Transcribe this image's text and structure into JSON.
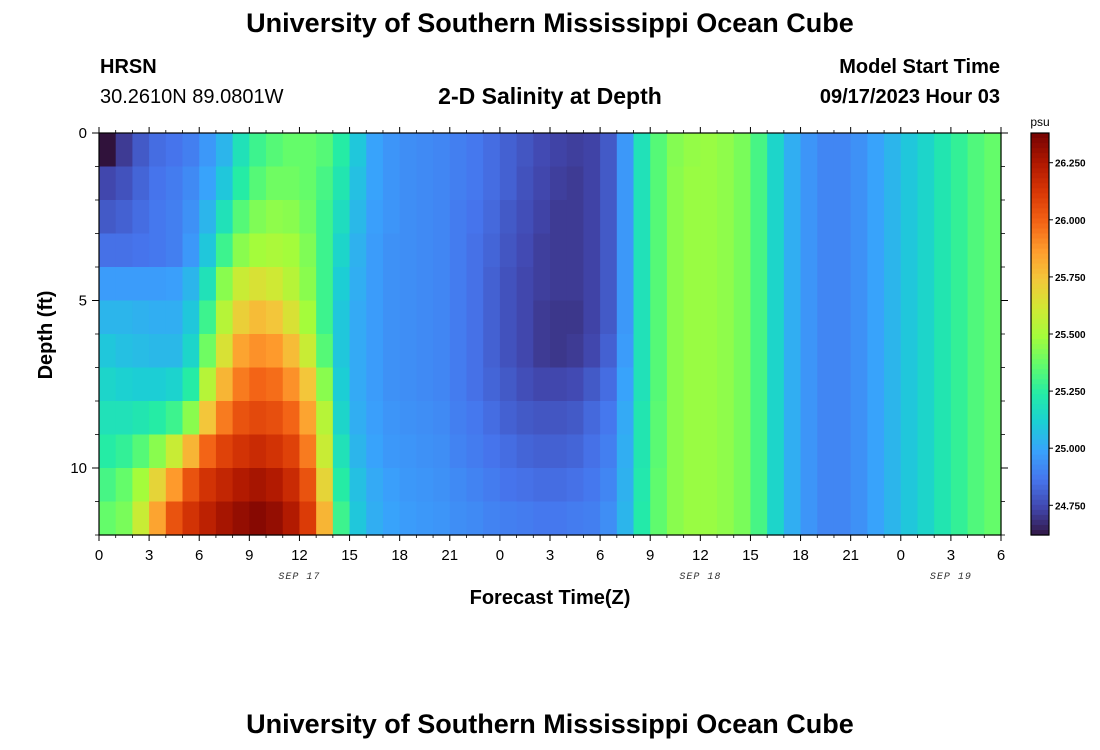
{
  "header": {
    "title": "University of Southern Mississippi Ocean Cube",
    "station": "HRSN",
    "coordinates": "30.2610N  89.0801W",
    "subtitle": "2-D Salinity at Depth",
    "start_label": "Model Start Time",
    "start_value": "09/17/2023 Hour 03"
  },
  "footer": {
    "title": "University of Southern Mississippi Ocean Cube"
  },
  "chart_data": {
    "type": "heatmap",
    "title": "2-D Salinity at Depth",
    "xlabel": "Forecast Time(Z)",
    "ylabel": "Depth (ft)",
    "x_range_hours": [
      0,
      54
    ],
    "x_ticks": [
      {
        "hour": 0,
        "label": "0"
      },
      {
        "hour": 3,
        "label": "3"
      },
      {
        "hour": 6,
        "label": "6"
      },
      {
        "hour": 9,
        "label": "9"
      },
      {
        "hour": 12,
        "label": "12"
      },
      {
        "hour": 15,
        "label": "15"
      },
      {
        "hour": 18,
        "label": "18"
      },
      {
        "hour": 21,
        "label": "21"
      },
      {
        "hour": 24,
        "label": "0"
      },
      {
        "hour": 27,
        "label": "3"
      },
      {
        "hour": 30,
        "label": "6"
      },
      {
        "hour": 33,
        "label": "9"
      },
      {
        "hour": 36,
        "label": "12"
      },
      {
        "hour": 39,
        "label": "15"
      },
      {
        "hour": 42,
        "label": "18"
      },
      {
        "hour": 45,
        "label": "21"
      },
      {
        "hour": 48,
        "label": "0"
      },
      {
        "hour": 51,
        "label": "3"
      },
      {
        "hour": 54,
        "label": "6"
      }
    ],
    "date_labels": [
      {
        "hour": 12,
        "label": "SEP 17"
      },
      {
        "hour": 36,
        "label": "SEP 18"
      },
      {
        "hour": 51,
        "label": "SEP 19"
      }
    ],
    "y_range_ft": [
      0,
      12
    ],
    "y_ticks": [
      {
        "depth": 0,
        "label": "0"
      },
      {
        "depth": 5,
        "label": "5"
      },
      {
        "depth": 10,
        "label": "10"
      }
    ],
    "colorbar": {
      "units": "psu",
      "range": [
        24.62,
        26.38
      ],
      "ticks": [
        {
          "value": 24.75,
          "label": "24.750"
        },
        {
          "value": 25.0,
          "label": "25.000"
        },
        {
          "value": 25.25,
          "label": "25.250"
        },
        {
          "value": 25.5,
          "label": "25.500"
        },
        {
          "value": 25.75,
          "label": "25.750"
        },
        {
          "value": 26.0,
          "label": "26.000"
        },
        {
          "value": 26.25,
          "label": "26.250"
        }
      ]
    },
    "grid": {
      "time_columns": 54,
      "depth_levels": 12
    },
    "depth_levels_ft": [
      0.5,
      1.5,
      2.5,
      3.5,
      4.5,
      5.5,
      6.5,
      7.5,
      8.5,
      9.5,
      10.5,
      11.5
    ],
    "salinity_psu": [
      [
        24.62,
        24.72,
        24.8,
        24.85,
        24.87,
        24.9,
        24.97,
        25.05,
        25.2,
        25.3,
        25.35,
        25.38,
        25.38,
        25.35,
        25.25,
        25.1,
        25.0,
        24.96,
        24.94,
        24.93,
        24.92,
        24.9,
        24.88,
        24.85,
        24.82,
        24.79,
        24.76,
        24.74,
        24.73,
        24.74,
        24.8,
        24.97,
        25.2,
        25.35,
        25.44,
        25.47,
        25.48,
        25.46,
        25.42,
        25.32,
        25.15,
        25.03,
        24.96,
        24.92,
        24.92,
        24.95,
        25.0,
        25.05,
        25.1,
        25.15,
        25.22,
        25.28,
        25.34,
        25.38
      ],
      [
        24.75,
        24.78,
        24.83,
        24.87,
        24.89,
        24.93,
        25.0,
        25.1,
        25.25,
        25.35,
        25.4,
        25.4,
        25.38,
        25.32,
        25.22,
        25.08,
        25.0,
        24.96,
        24.94,
        24.93,
        24.92,
        24.9,
        24.88,
        24.85,
        24.82,
        24.78,
        24.75,
        24.73,
        24.72,
        24.74,
        24.8,
        24.97,
        25.2,
        25.35,
        25.45,
        25.48,
        25.48,
        25.46,
        25.42,
        25.32,
        25.15,
        25.03,
        24.96,
        24.92,
        24.92,
        24.95,
        25.0,
        25.05,
        25.1,
        25.15,
        25.22,
        25.28,
        25.34,
        25.38
      ],
      [
        24.8,
        24.82,
        24.85,
        24.88,
        24.9,
        24.95,
        25.05,
        25.2,
        25.35,
        25.43,
        25.46,
        25.45,
        25.4,
        25.3,
        25.18,
        25.06,
        24.99,
        24.96,
        24.94,
        24.93,
        24.92,
        24.89,
        24.87,
        24.84,
        24.8,
        24.77,
        24.74,
        24.72,
        24.72,
        24.74,
        24.8,
        24.97,
        25.2,
        25.35,
        25.45,
        25.48,
        25.48,
        25.46,
        25.42,
        25.32,
        25.15,
        25.03,
        24.96,
        24.92,
        24.92,
        24.95,
        25.0,
        25.05,
        25.1,
        25.15,
        25.22,
        25.28,
        25.34,
        25.38
      ],
      [
        24.86,
        24.86,
        24.87,
        24.88,
        24.9,
        24.97,
        25.1,
        25.3,
        25.45,
        25.5,
        25.52,
        25.5,
        25.43,
        25.3,
        25.15,
        25.04,
        24.98,
        24.95,
        24.94,
        24.93,
        24.92,
        24.89,
        24.86,
        24.83,
        24.79,
        24.76,
        24.73,
        24.72,
        24.72,
        24.74,
        24.8,
        24.97,
        25.2,
        25.35,
        25.45,
        25.48,
        25.48,
        25.46,
        25.42,
        25.32,
        25.15,
        25.03,
        24.96,
        24.92,
        24.92,
        24.95,
        25.0,
        25.05,
        25.1,
        25.15,
        25.22,
        25.28,
        25.34,
        25.38
      ],
      [
        24.98,
        24.98,
        24.98,
        24.98,
        24.99,
        25.05,
        25.2,
        25.45,
        25.6,
        25.65,
        25.62,
        25.55,
        25.45,
        25.3,
        25.12,
        25.03,
        24.98,
        24.95,
        24.94,
        24.93,
        24.92,
        24.89,
        24.86,
        24.82,
        24.78,
        24.75,
        24.73,
        24.72,
        24.72,
        24.74,
        24.8,
        24.97,
        25.2,
        25.35,
        25.45,
        25.48,
        25.48,
        25.46,
        25.42,
        25.32,
        25.15,
        25.03,
        24.96,
        24.92,
        24.92,
        24.95,
        25.0,
        25.05,
        25.1,
        25.15,
        25.22,
        25.28,
        25.34,
        25.38
      ],
      [
        25.05,
        25.05,
        25.04,
        25.03,
        25.03,
        25.1,
        25.3,
        25.55,
        25.72,
        25.78,
        25.75,
        25.65,
        25.5,
        25.3,
        25.1,
        25.02,
        24.98,
        24.95,
        24.94,
        24.93,
        24.92,
        24.89,
        24.86,
        24.82,
        24.78,
        24.75,
        24.72,
        24.71,
        24.71,
        24.74,
        24.8,
        24.97,
        25.2,
        25.35,
        25.45,
        25.48,
        25.48,
        25.46,
        25.42,
        25.32,
        25.15,
        25.03,
        24.96,
        24.92,
        24.92,
        24.95,
        25.0,
        25.05,
        25.1,
        25.15,
        25.22,
        25.28,
        25.34,
        25.38
      ],
      [
        25.1,
        25.08,
        25.07,
        25.06,
        25.06,
        25.15,
        25.4,
        25.65,
        25.85,
        25.9,
        25.88,
        25.78,
        25.6,
        25.35,
        25.1,
        25.02,
        24.98,
        24.95,
        24.94,
        24.93,
        24.92,
        24.89,
        24.86,
        24.82,
        24.78,
        24.75,
        24.72,
        24.71,
        24.72,
        24.75,
        24.82,
        24.98,
        25.2,
        25.35,
        25.45,
        25.48,
        25.48,
        25.46,
        25.42,
        25.32,
        25.15,
        25.03,
        24.96,
        24.92,
        24.92,
        24.95,
        25.0,
        25.05,
        25.1,
        25.15,
        25.22,
        25.28,
        25.34,
        25.38
      ],
      [
        25.15,
        25.13,
        25.12,
        25.12,
        25.14,
        25.25,
        25.55,
        25.8,
        25.95,
        26.0,
        25.98,
        25.9,
        25.75,
        25.45,
        25.12,
        25.02,
        24.98,
        24.95,
        24.94,
        24.93,
        24.92,
        24.89,
        24.86,
        24.83,
        24.8,
        24.77,
        24.75,
        24.75,
        24.76,
        24.8,
        24.85,
        25.0,
        25.2,
        25.35,
        25.45,
        25.48,
        25.48,
        25.46,
        25.42,
        25.32,
        25.15,
        25.03,
        24.96,
        24.92,
        24.92,
        24.95,
        25.0,
        25.05,
        25.1,
        25.15,
        25.22,
        25.28,
        25.34,
        25.38
      ],
      [
        25.2,
        25.2,
        25.22,
        25.25,
        25.3,
        25.45,
        25.75,
        25.95,
        26.05,
        26.08,
        26.06,
        26.0,
        25.85,
        25.55,
        25.15,
        25.03,
        24.99,
        24.96,
        24.95,
        24.94,
        24.93,
        24.9,
        24.88,
        24.85,
        24.82,
        24.8,
        24.79,
        24.79,
        24.8,
        24.84,
        24.88,
        25.02,
        25.22,
        25.36,
        25.45,
        25.48,
        25.48,
        25.46,
        25.42,
        25.32,
        25.15,
        25.03,
        24.96,
        24.92,
        24.92,
        24.95,
        25.0,
        25.05,
        25.1,
        25.15,
        25.22,
        25.28,
        25.34,
        25.38
      ],
      [
        25.25,
        25.28,
        25.35,
        25.45,
        25.6,
        25.8,
        26.0,
        26.1,
        26.15,
        26.18,
        26.15,
        26.1,
        25.95,
        25.6,
        25.2,
        25.05,
        25.0,
        24.97,
        24.96,
        24.95,
        24.94,
        24.91,
        24.89,
        24.87,
        24.85,
        24.83,
        24.82,
        24.82,
        24.83,
        24.86,
        24.9,
        25.03,
        25.22,
        25.36,
        25.45,
        25.48,
        25.48,
        25.46,
        25.42,
        25.32,
        25.15,
        25.03,
        24.96,
        24.92,
        24.92,
        24.95,
        25.0,
        25.05,
        25.1,
        25.15,
        25.22,
        25.28,
        25.34,
        25.38
      ],
      [
        25.32,
        25.38,
        25.5,
        25.7,
        25.88,
        26.05,
        26.15,
        26.2,
        26.25,
        26.28,
        26.25,
        26.18,
        26.05,
        25.7,
        25.25,
        25.08,
        25.02,
        24.99,
        24.97,
        24.96,
        24.95,
        24.93,
        24.91,
        24.89,
        24.87,
        24.86,
        24.85,
        24.85,
        24.86,
        24.88,
        24.92,
        25.04,
        25.23,
        25.37,
        25.45,
        25.48,
        25.48,
        25.46,
        25.42,
        25.32,
        25.15,
        25.03,
        24.96,
        24.92,
        24.92,
        24.95,
        25.0,
        25.05,
        25.1,
        25.15,
        25.22,
        25.28,
        25.34,
        25.38
      ],
      [
        25.38,
        25.42,
        25.6,
        25.85,
        26.05,
        26.15,
        26.22,
        26.28,
        26.32,
        26.35,
        26.32,
        26.25,
        26.12,
        25.8,
        25.3,
        25.1,
        25.03,
        25.0,
        24.98,
        24.97,
        24.96,
        24.94,
        24.93,
        24.91,
        24.9,
        24.89,
        24.88,
        24.88,
        24.89,
        24.9,
        24.94,
        25.05,
        25.24,
        25.37,
        25.45,
        25.48,
        25.48,
        25.46,
        25.42,
        25.32,
        25.15,
        25.03,
        24.96,
        24.92,
        24.92,
        24.95,
        25.0,
        25.05,
        25.1,
        25.15,
        25.22,
        25.28,
        25.34,
        25.38
      ]
    ],
    "colors": {
      "scale": [
        "#30123b",
        "#4145ab",
        "#4675ed",
        "#39a2fc",
        "#1bcfd4",
        "#24eca6",
        "#61fc6c",
        "#a4fc3b",
        "#d1e834",
        "#f3c63a",
        "#fe9b2d",
        "#f36315",
        "#d93806",
        "#b11901",
        "#7a0402"
      ],
      "missing": "#ffffff",
      "axis": "#000000"
    }
  }
}
